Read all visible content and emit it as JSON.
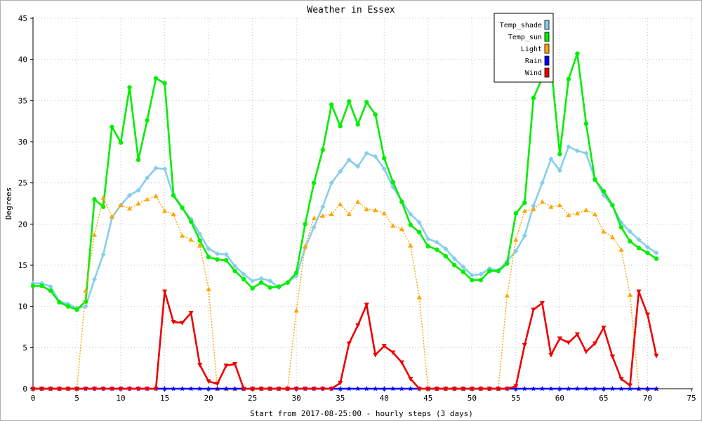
{
  "chart_data": {
    "type": "line",
    "title": "Weather in Essex",
    "xlabel": "Start from 2017-08-25:00 - hourly steps (3 days)",
    "ylabel": "Degrees",
    "xlim": [
      0,
      75
    ],
    "ylim": [
      0,
      45
    ],
    "xticks": [
      0,
      5,
      10,
      15,
      20,
      25,
      30,
      35,
      40,
      45,
      50,
      55,
      60,
      65,
      70,
      75
    ],
    "yticks": [
      0,
      5,
      10,
      15,
      20,
      25,
      30,
      35,
      40,
      45
    ],
    "grid": true,
    "legend_position": "top-right",
    "x": [
      0,
      1,
      2,
      3,
      4,
      5,
      6,
      7,
      8,
      9,
      10,
      11,
      12,
      13,
      14,
      15,
      16,
      17,
      18,
      19,
      20,
      21,
      22,
      23,
      24,
      25,
      26,
      27,
      28,
      29,
      30,
      31,
      32,
      33,
      34,
      35,
      36,
      37,
      38,
      39,
      40,
      41,
      42,
      43,
      44,
      45,
      46,
      47,
      48,
      49,
      50,
      51,
      52,
      53,
      54,
      55,
      56,
      57,
      58,
      59,
      60,
      61,
      62,
      63,
      64,
      65,
      66,
      67,
      68,
      69,
      70,
      71
    ],
    "series": [
      {
        "name": "Temp_shade",
        "color": "#87ceeb",
        "marker": "diamond",
        "line": "solid",
        "values": [
          12.8,
          12.8,
          12.4,
          10.6,
          10.3,
          9.8,
          10.0,
          13.3,
          16.3,
          20.8,
          22.3,
          23.5,
          24.1,
          25.6,
          26.8,
          26.7,
          23.4,
          21.9,
          20.6,
          18.8,
          17.0,
          16.4,
          16.3,
          14.9,
          13.9,
          13.1,
          13.4,
          13.1,
          12.3,
          12.9,
          13.7,
          17.1,
          19.6,
          22.1,
          25.0,
          26.4,
          27.8,
          27.0,
          28.6,
          28.2,
          26.7,
          24.5,
          22.8,
          21.2,
          20.2,
          18.2,
          17.8,
          17.0,
          15.8,
          14.8,
          13.8,
          13.9,
          14.6,
          14.4,
          15.5,
          16.7,
          18.6,
          22.2,
          25.0,
          27.9,
          26.5,
          29.4,
          28.9,
          28.6,
          25.5,
          23.5,
          22.2,
          20.2,
          19.1,
          18.1,
          17.2,
          16.5
        ]
      },
      {
        "name": "Temp_sun",
        "color": "#00ee00",
        "marker": "circle",
        "line": "solid",
        "values": [
          12.5,
          12.5,
          11.9,
          10.5,
          10.0,
          9.6,
          10.6,
          23.0,
          22.1,
          31.8,
          29.9,
          36.6,
          27.8,
          32.6,
          37.7,
          37.1,
          23.5,
          22.0,
          20.3,
          18.0,
          16.0,
          15.7,
          15.6,
          14.3,
          13.3,
          12.2,
          12.9,
          12.3,
          12.4,
          12.9,
          14.1,
          20.0,
          25.0,
          29.0,
          34.5,
          31.9,
          34.9,
          32.1,
          34.8,
          33.3,
          28.0,
          25.1,
          22.7,
          19.9,
          19.0,
          17.3,
          16.9,
          16.1,
          15.0,
          14.2,
          13.2,
          13.2,
          14.3,
          14.3,
          15.2,
          21.3,
          22.6,
          35.3,
          37.7,
          39.3,
          28.5,
          37.6,
          40.7,
          32.2,
          25.4,
          24.0,
          22.3,
          19.6,
          17.9,
          17.1,
          16.5,
          15.8
        ]
      },
      {
        "name": "Light",
        "color": "#ffa500",
        "marker": "triangle-up",
        "line": "dotted",
        "values": [
          0,
          0,
          0,
          0,
          0,
          0,
          11.9,
          18.7,
          23.2,
          20.9,
          22.3,
          21.9,
          22.5,
          23.0,
          23.4,
          21.6,
          21.2,
          18.6,
          18.1,
          17.4,
          12.1,
          0,
          0,
          0,
          0,
          0,
          0,
          0,
          0,
          0,
          9.5,
          17.3,
          20.7,
          21.0,
          21.2,
          22.4,
          21.2,
          22.7,
          21.8,
          21.7,
          21.3,
          19.8,
          19.4,
          17.4,
          11.1,
          0,
          0,
          0,
          0,
          0,
          0,
          0,
          0,
          0,
          11.3,
          18.1,
          21.6,
          21.8,
          22.7,
          22.1,
          22.3,
          21.1,
          21.3,
          21.7,
          21.2,
          19.1,
          18.4,
          16.9,
          11.4,
          0,
          0,
          0
        ]
      },
      {
        "name": "Rain",
        "color": "#0000ff",
        "marker": "star",
        "line": "solid",
        "values": [
          0,
          0,
          0,
          0,
          0,
          0,
          0,
          0,
          0,
          0,
          0,
          0,
          0,
          0,
          0,
          0,
          0,
          0,
          0,
          0,
          0,
          0,
          0,
          0,
          0,
          0,
          0,
          0,
          0,
          0,
          0,
          0,
          0,
          0,
          0,
          0,
          0,
          0,
          0,
          0,
          0,
          0,
          0,
          0,
          0,
          0,
          0,
          0,
          0,
          0,
          0,
          0,
          0,
          0,
          0,
          0,
          0,
          0,
          0,
          0,
          0,
          0,
          0,
          0,
          0,
          0,
          0,
          0,
          0,
          0,
          0,
          0
        ]
      },
      {
        "name": "Wind",
        "color": "#ee0000",
        "marker": "triangle-down",
        "line": "solid",
        "values": [
          0,
          0,
          0,
          0,
          0,
          0,
          0,
          0,
          0,
          0,
          0,
          0,
          0,
          0,
          0,
          11.8,
          8.1,
          8.0,
          9.2,
          2.9,
          0.9,
          0.6,
          2.8,
          3.0,
          0,
          0,
          0,
          0,
          0,
          0,
          0,
          0,
          0,
          0,
          0,
          0.7,
          5.5,
          7.7,
          10.2,
          4.1,
          5.2,
          4.4,
          3.2,
          1.2,
          0,
          0,
          0,
          0,
          0,
          0,
          0,
          0,
          0,
          0,
          0,
          0.3,
          5.3,
          9.6,
          10.4,
          4.1,
          6.1,
          5.6,
          6.6,
          4.5,
          5.5,
          7.4,
          3.9,
          1.2,
          0.4,
          11.8,
          9.0,
          4.0
        ]
      }
    ]
  }
}
